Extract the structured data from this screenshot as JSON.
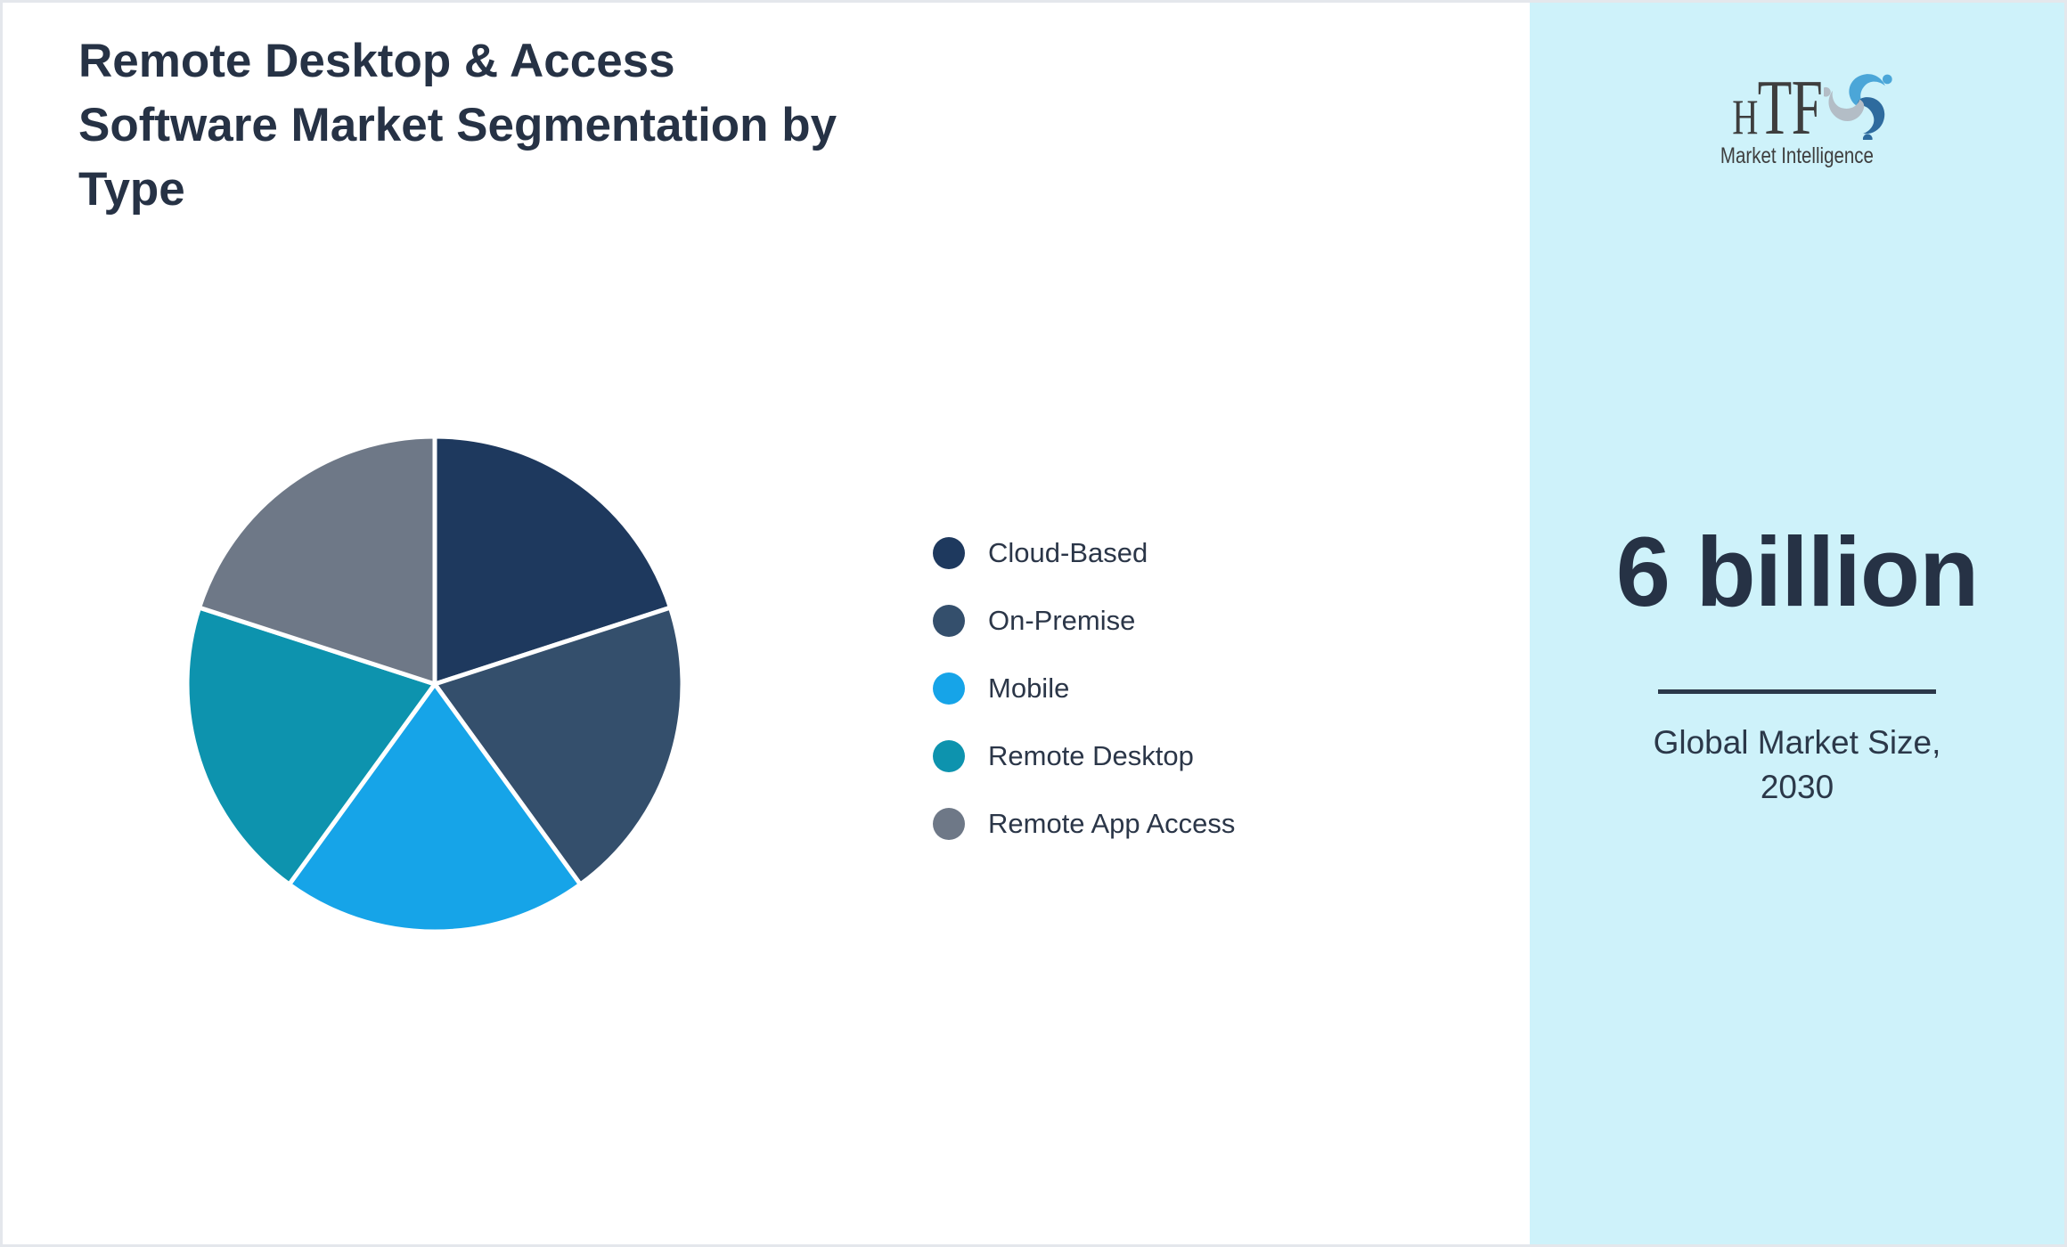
{
  "header": {
    "title": "Remote Desktop & Access Software Market Segmentation by Type",
    "title_lines": [
      "Remote Desktop & Access",
      "Software Market Segmentation by",
      "Type"
    ]
  },
  "chart_data": {
    "type": "pie",
    "title": "Remote Desktop & Access Software Market Segmentation by Type",
    "segments": [
      {
        "label": "Cloud-Based",
        "value": 20,
        "color": "#1E395E"
      },
      {
        "label": "On-Premise",
        "value": 20,
        "color": "#344F6C"
      },
      {
        "label": "Mobile",
        "value": 20,
        "color": "#16A4E8"
      },
      {
        "label": "Remote Desktop",
        "value": 20,
        "color": "#0D93AE"
      },
      {
        "label": "Remote App Access",
        "value": 20,
        "color": "#6E7887"
      }
    ],
    "start_angle_deg": 0,
    "direction": "clockwise",
    "legend_position": "right",
    "slice_border_color": "#FFFFFF",
    "slice_border_width": 5
  },
  "sidebar": {
    "background_color": "#CEF2FA",
    "logo": {
      "name": "HTF",
      "name_h": "H",
      "name_tf": "TF",
      "subtitle": "Market Intelligence"
    },
    "market_size_value": "6 billion",
    "caption_line1": "Global Market Size,",
    "caption_line2": "2030"
  }
}
